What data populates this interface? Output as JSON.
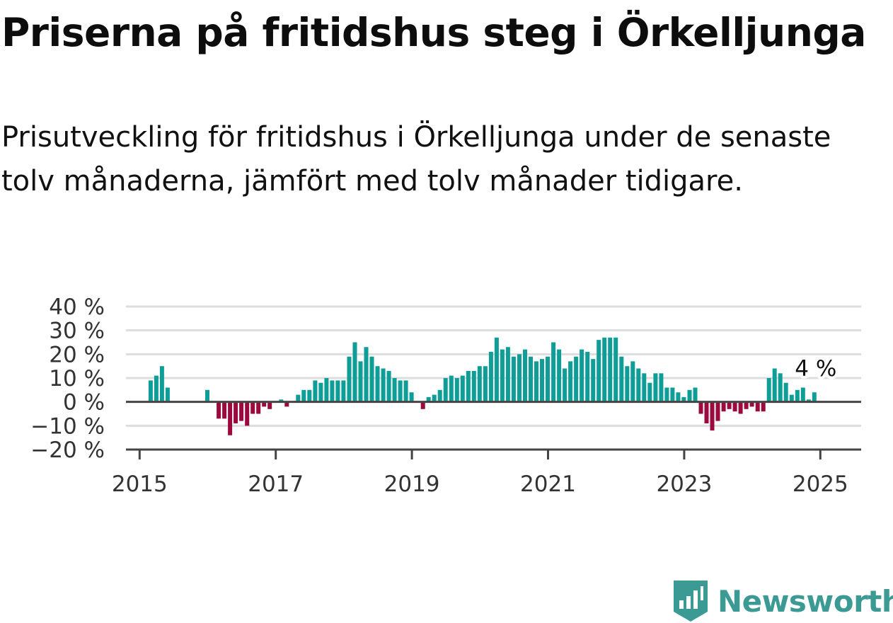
{
  "title": "Priserna på fritidshus steg i Örkelljunga",
  "subtitle": "Prisutveckling för fritidshus i Örkelljunga under de senaste tolv månaderna, jämfört med tolv månader tidigare.",
  "brand": {
    "name": "Newsworthy",
    "color": "#3b9a94"
  },
  "colors": {
    "positive": "#0f9e97",
    "negative": "#9b0a3e",
    "grid": "#dddddd",
    "zero_line": "#444444"
  },
  "chart_data": {
    "type": "bar",
    "x_tick_labels": [
      "2015",
      "2017",
      "2019",
      "2021",
      "2023",
      "2025"
    ],
    "y_tick_labels": [
      "40 %",
      "30 %",
      "20 %",
      "10 %",
      "0 %",
      "−10 %",
      "−20 %"
    ],
    "ylim": [
      -20,
      40
    ],
    "grid": true,
    "annotation": "4 %",
    "series": [
      {
        "points": [
          {
            "x": "2015-05",
            "y": 9
          },
          {
            "x": "2015-06",
            "y": 11
          },
          {
            "x": "2015-07",
            "y": 15
          },
          {
            "x": "2015-08",
            "y": 6
          },
          {
            "x": "2016-03",
            "y": 5
          },
          {
            "x": "2016-05",
            "y": -7
          },
          {
            "x": "2016-06",
            "y": -7
          },
          {
            "x": "2016-07",
            "y": -14
          },
          {
            "x": "2016-08",
            "y": -9
          },
          {
            "x": "2016-09",
            "y": -8
          },
          {
            "x": "2016-10",
            "y": -10
          },
          {
            "x": "2016-11",
            "y": -5
          },
          {
            "x": "2016-12",
            "y": -5
          },
          {
            "x": "2017-01",
            "y": -2
          },
          {
            "x": "2017-02",
            "y": -3
          },
          {
            "x": "2017-04",
            "y": 1
          },
          {
            "x": "2017-05",
            "y": -2
          },
          {
            "x": "2017-07",
            "y": 3
          },
          {
            "x": "2017-08",
            "y": 5
          },
          {
            "x": "2017-09",
            "y": 5
          },
          {
            "x": "2017-10",
            "y": 9
          },
          {
            "x": "2017-11",
            "y": 8
          },
          {
            "x": "2017-12",
            "y": 10
          },
          {
            "x": "2018-01",
            "y": 9
          },
          {
            "x": "2018-02",
            "y": 9
          },
          {
            "x": "2018-03",
            "y": 9
          },
          {
            "x": "2018-04",
            "y": 19
          },
          {
            "x": "2018-05",
            "y": 25
          },
          {
            "x": "2018-06",
            "y": 17
          },
          {
            "x": "2018-07",
            "y": 23
          },
          {
            "x": "2018-08",
            "y": 19
          },
          {
            "x": "2018-09",
            "y": 15
          },
          {
            "x": "2018-10",
            "y": 14
          },
          {
            "x": "2018-11",
            "y": 13
          },
          {
            "x": "2018-12",
            "y": 10
          },
          {
            "x": "2019-01",
            "y": 9
          },
          {
            "x": "2019-02",
            "y": 9
          },
          {
            "x": "2019-03",
            "y": 4
          },
          {
            "x": "2019-05",
            "y": -3
          },
          {
            "x": "2019-06",
            "y": 2
          },
          {
            "x": "2019-07",
            "y": 3
          },
          {
            "x": "2019-08",
            "y": 5
          },
          {
            "x": "2019-09",
            "y": 10
          },
          {
            "x": "2019-10",
            "y": 11
          },
          {
            "x": "2019-11",
            "y": 10
          },
          {
            "x": "2019-12",
            "y": 11
          },
          {
            "x": "2020-01",
            "y": 13
          },
          {
            "x": "2020-02",
            "y": 13
          },
          {
            "x": "2020-03",
            "y": 15
          },
          {
            "x": "2020-04",
            "y": 15
          },
          {
            "x": "2020-05",
            "y": 21
          },
          {
            "x": "2020-06",
            "y": 27
          },
          {
            "x": "2020-07",
            "y": 22
          },
          {
            "x": "2020-08",
            "y": 23
          },
          {
            "x": "2020-09",
            "y": 19
          },
          {
            "x": "2020-10",
            "y": 20
          },
          {
            "x": "2020-11",
            "y": 22
          },
          {
            "x": "2020-12",
            "y": 19
          },
          {
            "x": "2021-01",
            "y": 17
          },
          {
            "x": "2021-02",
            "y": 18
          },
          {
            "x": "2021-03",
            "y": 19
          },
          {
            "x": "2021-04",
            "y": 25
          },
          {
            "x": "2021-05",
            "y": 22
          },
          {
            "x": "2021-06",
            "y": 14
          },
          {
            "x": "2021-07",
            "y": 17
          },
          {
            "x": "2021-08",
            "y": 19
          },
          {
            "x": "2021-09",
            "y": 22
          },
          {
            "x": "2021-10",
            "y": 21
          },
          {
            "x": "2021-11",
            "y": 18
          },
          {
            "x": "2021-12",
            "y": 26
          },
          {
            "x": "2022-01",
            "y": 27
          },
          {
            "x": "2022-02",
            "y": 27
          },
          {
            "x": "2022-03",
            "y": 27
          },
          {
            "x": "2022-04",
            "y": 19
          },
          {
            "x": "2022-05",
            "y": 15
          },
          {
            "x": "2022-06",
            "y": 17
          },
          {
            "x": "2022-07",
            "y": 14
          },
          {
            "x": "2022-08",
            "y": 12
          },
          {
            "x": "2022-09",
            "y": 8
          },
          {
            "x": "2022-10",
            "y": 12
          },
          {
            "x": "2022-11",
            "y": 12
          },
          {
            "x": "2022-12",
            "y": 6
          },
          {
            "x": "2023-01",
            "y": 6
          },
          {
            "x": "2023-02",
            "y": 4
          },
          {
            "x": "2023-03",
            "y": 2
          },
          {
            "x": "2023-04",
            "y": 5
          },
          {
            "x": "2023-05",
            "y": 6
          },
          {
            "x": "2023-06",
            "y": -5
          },
          {
            "x": "2023-07",
            "y": -9
          },
          {
            "x": "2023-08",
            "y": -12
          },
          {
            "x": "2023-09",
            "y": -8
          },
          {
            "x": "2023-10",
            "y": -4
          },
          {
            "x": "2023-11",
            "y": -3
          },
          {
            "x": "2023-12",
            "y": -4
          },
          {
            "x": "2024-01",
            "y": -5
          },
          {
            "x": "2024-02",
            "y": -3
          },
          {
            "x": "2024-03",
            "y": -2
          },
          {
            "x": "2024-04",
            "y": -4
          },
          {
            "x": "2024-05",
            "y": -4
          },
          {
            "x": "2024-06",
            "y": 10
          },
          {
            "x": "2024-07",
            "y": 14
          },
          {
            "x": "2024-08",
            "y": 12
          },
          {
            "x": "2024-09",
            "y": 8
          },
          {
            "x": "2024-10",
            "y": 3
          },
          {
            "x": "2024-11",
            "y": 5
          },
          {
            "x": "2024-12",
            "y": 6
          },
          {
            "x": "2025-01",
            "y": 1
          },
          {
            "x": "2025-02",
            "y": 4
          }
        ]
      }
    ]
  }
}
